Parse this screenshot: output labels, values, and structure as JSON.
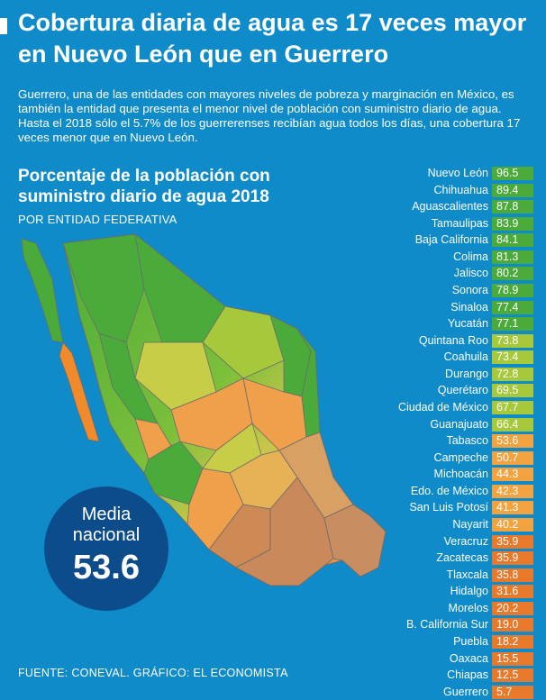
{
  "header": {
    "title": "Cobertura diaria de agua es 17 veces mayor en Nuevo León que en Guerrero",
    "intro": "Guerrero, una de las entidades con mayores niveles de pobreza y marginación en México, es también la entidad que presenta el menor nivel de población con suministro diario de agua. Hasta el 2018 sólo el 5.7% de los guerrerenses recibían agua todos los días, una cobertura 17 veces menor que en Nuevo León."
  },
  "colors": {
    "background": "#0f8bc9",
    "green": "#4aab3a",
    "lightgreen": "#a6c93c",
    "orange": "#f29a3a",
    "darkorange": "#e8782a"
  },
  "chart_data": {
    "type": "bar",
    "title": "Porcentaje de la población con suministro diario de agua 2018",
    "subtitle": "POR ENTIDAD FEDERATIVA",
    "categories": [
      "Nuevo León",
      "Chihuahua",
      "Aguascalientes",
      "Tamaulipas",
      "Baja California",
      "Colima",
      "Jalisco",
      "Sonora",
      "Sinaloa",
      "Yucatán",
      "Quintana Roo",
      "Coahuila",
      "Durango",
      "Querétaro",
      "Ciudad de México",
      "Guanajuato",
      "Tabasco",
      "Campeche",
      "Michoacán",
      "Edo. de México",
      "San Luis Potosí",
      "Nayarit",
      "Veracruz",
      "Zacatecas",
      "Tlaxcala",
      "Hidalgo",
      "Morelos",
      "B. California Sur",
      "Puebla",
      "Oaxaca",
      "Chiapas",
      "Guerrero"
    ],
    "values": [
      96.5,
      89.4,
      87.8,
      83.9,
      84.1,
      81.3,
      80.2,
      78.9,
      77.4,
      77.1,
      73.8,
      73.4,
      72.8,
      69.5,
      67.7,
      66.4,
      53.6,
      50.7,
      44.3,
      42.3,
      41.3,
      40.2,
      35.9,
      35.9,
      35.8,
      31.6,
      20.2,
      19.0,
      18.2,
      15.5,
      12.5,
      5.7
    ],
    "value_labels": [
      "96.5",
      "89.4",
      "87.8",
      "83.9",
      "84.1",
      "81.3",
      "80.2",
      "78.9",
      "77.4",
      "77.1",
      "73.8",
      "73.4",
      "72.8",
      "69.5",
      "67.7",
      "66.4",
      "53.6",
      "50.7",
      "44.3",
      "42.3",
      "41.3",
      "40.2",
      "35.9",
      "35.9",
      "35.8",
      "31.6",
      "20.2",
      "19.0",
      "18.2",
      "15.5",
      "12.5",
      "5.7"
    ],
    "unit": "%"
  },
  "badge": {
    "line1": "Media",
    "line2": "nacional",
    "value": "53.6"
  },
  "footer": {
    "source": "FUENTE: CONEVAL. GRÁFICO: EL ECONOMISTA"
  }
}
